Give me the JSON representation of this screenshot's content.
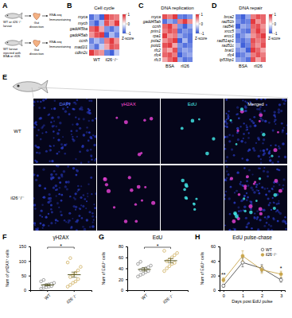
{
  "schematic": {
    "panel": "A",
    "rows": [
      {
        "subject": "WT or il26⁻/⁻ larvae",
        "step": "Gut dissection",
        "outputs": [
          "RNA-seq",
          "Immunostaining"
        ]
      },
      {
        "subject": "WT larvae injected with BSA or rIl26",
        "step": "Gut dissection",
        "outputs": [
          "RNA-seq",
          "Immunostaining"
        ]
      }
    ]
  },
  "images": {
    "panel": "E",
    "columns": [
      "DAPI",
      "γH2AX",
      "EdU",
      "Merged"
    ],
    "rows": [
      "WT",
      "il26⁻/⁻"
    ]
  },
  "chart_data": [
    {
      "type": "heatmap",
      "panel": "B",
      "title": "Cell cycle",
      "rows": [
        "myca",
        "mycb",
        "gadd45ba",
        "gadd45ab",
        "ccnh",
        "mad1l1",
        "cdkn2c"
      ],
      "column_groups": [
        "WT",
        "il26⁻/⁻"
      ],
      "cells": [
        [
          -0.8,
          -0.5,
          -0.9,
          0.9,
          0.7,
          0.6
        ],
        [
          -0.6,
          -0.9,
          -0.4,
          0.8,
          0.5,
          0.9
        ],
        [
          0.7,
          0.9,
          0.4,
          -0.6,
          -0.8,
          -0.5
        ],
        [
          0.5,
          0.8,
          0.9,
          -0.9,
          -0.4,
          -0.7
        ],
        [
          -0.7,
          -0.4,
          -0.6,
          0.6,
          0.9,
          0.5
        ],
        [
          -0.5,
          -0.8,
          -0.3,
          0.4,
          0.8,
          0.7
        ],
        [
          0.9,
          0.6,
          0.5,
          -0.7,
          -0.9,
          -0.3
        ]
      ],
      "colorbar": {
        "range": [
          -1,
          1
        ],
        "ticks": [
          1,
          0,
          -1
        ],
        "label": "Z-score"
      }
    },
    {
      "type": "heatmap",
      "panel": "C",
      "title": "DNA replication",
      "rows": [
        "myca",
        "gadd45ab",
        "ccnh",
        "prim1",
        "rpa1",
        "pola2",
        "pold1",
        "rfc2",
        "rfc4",
        "rfc3"
      ],
      "column_groups": [
        "BSA",
        "rIl26"
      ],
      "cells": [
        [
          0.8,
          0.6,
          0.9,
          -0.7,
          -0.8,
          -0.6
        ],
        [
          -0.8,
          -0.5,
          -0.7,
          0.6,
          0.9,
          0.5
        ],
        [
          0.7,
          0.9,
          0.5,
          -0.6,
          -0.9,
          -0.5
        ],
        [
          0.6,
          0.8,
          0.7,
          -0.8,
          -0.6,
          -0.7
        ],
        [
          0.9,
          0.5,
          0.6,
          -0.5,
          -0.7,
          -0.8
        ],
        [
          0.5,
          0.7,
          0.9,
          -0.9,
          -0.4,
          -0.8
        ],
        [
          0.8,
          0.9,
          0.4,
          -0.6,
          -0.8,
          -0.7
        ],
        [
          0.6,
          0.4,
          0.8,
          -0.7,
          -0.5,
          -0.6
        ],
        [
          0.7,
          0.8,
          0.6,
          -0.9,
          -0.6,
          -0.5
        ],
        [
          0.4,
          0.7,
          0.9,
          -0.5,
          -0.8,
          -0.7
        ]
      ],
      "colorbar": {
        "range": [
          -1,
          1
        ],
        "ticks": [
          1,
          0,
          -1
        ],
        "label": "Z-score"
      }
    },
    {
      "type": "heatmap",
      "panel": "D",
      "title": "DNA repair",
      "rows": [
        "brca2",
        "rad51b",
        "rad54l",
        "xrcc5",
        "ercc1",
        "rad51ap1",
        "rad51c",
        "brat1",
        "rfc4",
        "tp53bp1"
      ],
      "column_groups": [
        "BSA",
        "rIl26"
      ],
      "cells": [
        [
          -0.7,
          -0.9,
          -0.5,
          0.6,
          0.8,
          0.7
        ],
        [
          -0.6,
          -0.8,
          -0.7,
          0.9,
          0.5,
          0.7
        ],
        [
          -0.9,
          -0.5,
          -0.6,
          0.7,
          0.8,
          0.5
        ],
        [
          -0.5,
          -0.7,
          -0.8,
          0.6,
          0.9,
          0.6
        ],
        [
          -0.8,
          -0.6,
          -0.4,
          0.5,
          0.7,
          0.9
        ],
        [
          -0.7,
          -0.8,
          -0.6,
          0.8,
          0.6,
          0.7
        ],
        [
          -0.4,
          -0.9,
          -0.7,
          0.7,
          0.5,
          0.8
        ],
        [
          -0.6,
          -0.5,
          -0.9,
          0.9,
          0.7,
          0.4
        ],
        [
          -0.8,
          -0.7,
          -0.5,
          0.6,
          0.8,
          0.6
        ],
        [
          -0.5,
          -0.6,
          -0.8,
          0.8,
          0.4,
          0.7
        ]
      ],
      "colorbar": {
        "range": [
          -1,
          1
        ],
        "ticks": [
          1,
          0,
          -1
        ],
        "label": "Z-score"
      }
    },
    {
      "type": "scatter",
      "panel": "F",
      "title": "γH2AX",
      "y_label": "Num of γH2AX⁺ cells",
      "categories": [
        "WT",
        "il26⁻/⁻"
      ],
      "values": [
        [
          5,
          8,
          10,
          12,
          14,
          15,
          18,
          20,
          22,
          25,
          30,
          35
        ],
        [
          12,
          18,
          25,
          30,
          38,
          45,
          52,
          60,
          68,
          80,
          95,
          110
        ]
      ],
      "means": [
        18,
        53
      ],
      "errors": [
        3,
        9
      ],
      "colors": [
        "#7f7f7f",
        "#c8a54b"
      ],
      "ylim": [
        0,
        150
      ],
      "yticks": [
        0,
        50,
        100,
        150
      ],
      "annotations": [
        {
          "text": "*"
        }
      ]
    },
    {
      "type": "scatter",
      "panel": "G",
      "title": "EdU",
      "y_label": "Num of EdU⁺ cells",
      "categories": [
        "WT",
        "il26⁻/⁻"
      ],
      "values": [
        [
          25,
          28,
          30,
          33,
          35,
          37,
          39,
          40,
          42,
          45,
          48,
          52
        ],
        [
          35,
          40,
          44,
          48,
          50,
          53,
          56,
          60,
          64,
          68,
          72
        ]
      ],
      "means": [
        38,
        54
      ],
      "errors": [
        3,
        4
      ],
      "colors": [
        "#7f7f7f",
        "#c8a54b"
      ],
      "ylim": [
        0,
        80
      ],
      "yticks": [
        0,
        20,
        40,
        60,
        80
      ],
      "annotations": [
        {
          "text": "*"
        }
      ]
    },
    {
      "type": "line",
      "panel": "H",
      "title": "EdU pulse-chase",
      "x_label": "Days post EdU pulse",
      "y_label": "Num of EdU⁺ cells",
      "x": [
        0,
        1,
        2,
        3
      ],
      "xlim": [
        -0.2,
        3.2
      ],
      "xticks": [
        0,
        1,
        2,
        3
      ],
      "ylim": [
        0,
        60
      ],
      "yticks": [
        0,
        20,
        40,
        60
      ],
      "series": [
        {
          "name": "WT",
          "color": "#4d4d4d",
          "marker": "open-circle",
          "values": [
            6,
            38,
            30,
            14
          ],
          "errors": [
            2,
            6,
            5,
            3
          ]
        },
        {
          "name": "il26⁻/⁻",
          "color": "#c8a54b",
          "marker": "circle",
          "values": [
            14,
            47,
            28,
            22
          ],
          "errors": [
            3,
            7,
            5,
            4
          ]
        }
      ],
      "legend": "top-right",
      "annotations": [
        {
          "x": 0,
          "text": "**"
        },
        {
          "x": 3,
          "text": "*"
        }
      ]
    }
  ]
}
